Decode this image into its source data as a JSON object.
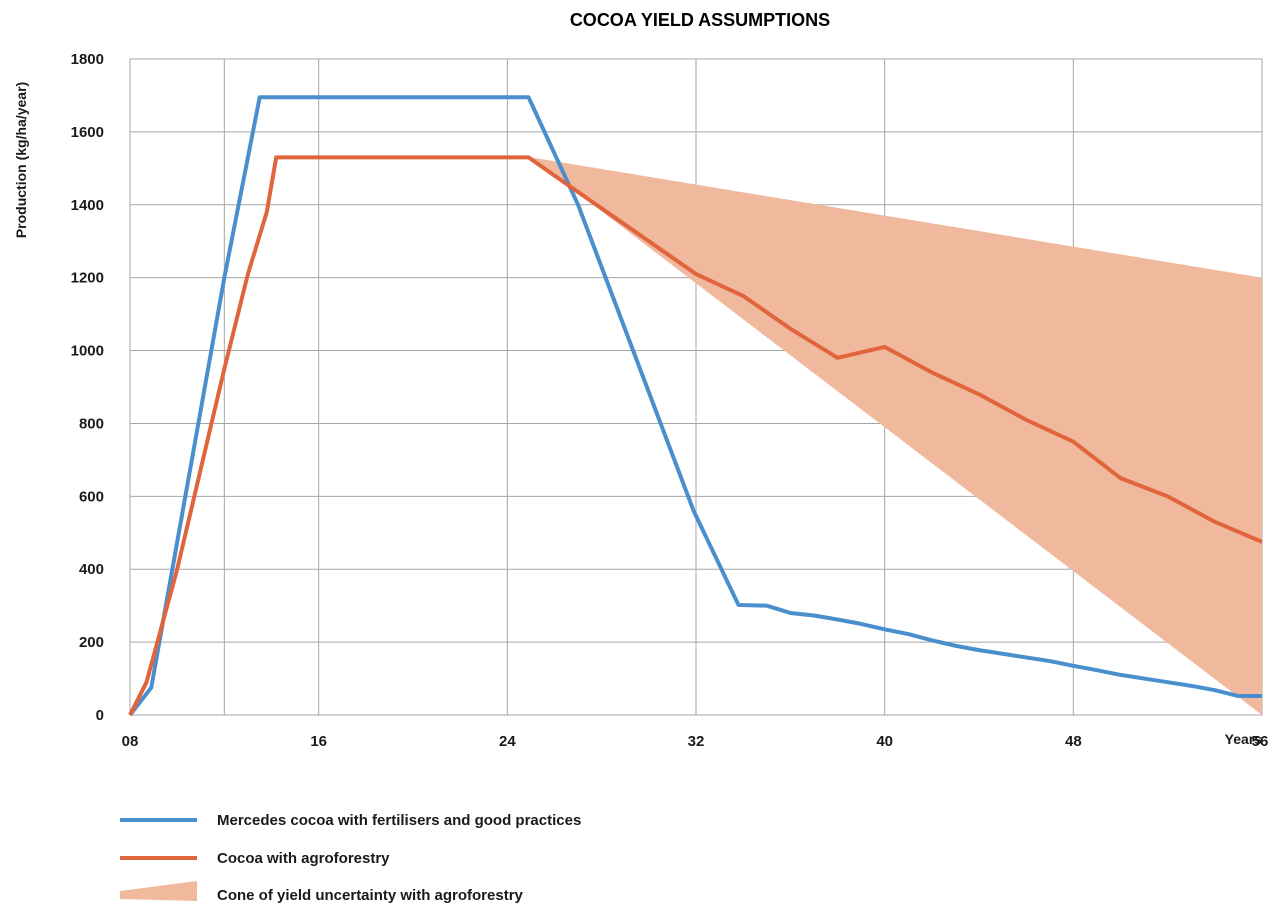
{
  "chart_data": {
    "type": "line",
    "title": "COCOA YIELD ASSUMPTIONS",
    "ylabel": "Production (kg/ha/year)",
    "xlabel": "Years",
    "xlim": [
      8,
      56
    ],
    "ylim": [
      0,
      1800
    ],
    "x_tick_labels": [
      "08",
      "",
      "16",
      "24",
      "32",
      "40",
      "48",
      "56"
    ],
    "x_tick_values": [
      8,
      12,
      16,
      24,
      32,
      40,
      48,
      56
    ],
    "y_ticks": [
      0,
      200,
      400,
      600,
      800,
      1000,
      1200,
      1400,
      1600,
      1800
    ],
    "grid": true,
    "legend_position": "bottom",
    "series": [
      {
        "name": "Mercedes cocoa with fertilisers and good practices",
        "color": "#4a8fcd",
        "points": [
          [
            8,
            0
          ],
          [
            8.9,
            75
          ],
          [
            12,
            1200
          ],
          [
            13.5,
            1695
          ],
          [
            24.9,
            1695
          ],
          [
            27,
            1400
          ],
          [
            31.9,
            560
          ],
          [
            33.8,
            302
          ],
          [
            35,
            300
          ],
          [
            36,
            280
          ],
          [
            37,
            273
          ],
          [
            38,
            262
          ],
          [
            39,
            250
          ],
          [
            40,
            235
          ],
          [
            41,
            222
          ],
          [
            42,
            205
          ],
          [
            43,
            190
          ],
          [
            44,
            178
          ],
          [
            45,
            168
          ],
          [
            46,
            158
          ],
          [
            47,
            148
          ],
          [
            48,
            135
          ],
          [
            49,
            123
          ],
          [
            50,
            110
          ],
          [
            51,
            100
          ],
          [
            52,
            90
          ],
          [
            53,
            80
          ],
          [
            54,
            68
          ],
          [
            55,
            52
          ],
          [
            56,
            52
          ]
        ]
      },
      {
        "name": "Cocoa with agroforestry",
        "color": "#e0653c",
        "points": [
          [
            8,
            0
          ],
          [
            8.7,
            90
          ],
          [
            10,
            400
          ],
          [
            12,
            950
          ],
          [
            13,
            1210
          ],
          [
            13.8,
            1380
          ],
          [
            14.2,
            1530
          ],
          [
            24.9,
            1530
          ],
          [
            26,
            1480
          ],
          [
            28,
            1390
          ],
          [
            30,
            1300
          ],
          [
            32,
            1210
          ],
          [
            34,
            1150
          ],
          [
            36,
            1060
          ],
          [
            38,
            980
          ],
          [
            40,
            1010
          ],
          [
            42,
            940
          ],
          [
            44,
            880
          ],
          [
            46,
            810
          ],
          [
            48,
            750
          ],
          [
            50,
            650
          ],
          [
            52,
            600
          ],
          [
            54,
            530
          ],
          [
            56,
            475
          ]
        ]
      }
    ],
    "band": {
      "name": "Cone of yield uncertainty with agroforestry",
      "color": "#f0b99d",
      "x": [
        25,
        56
      ],
      "upper": [
        1530,
        1200
      ],
      "lower": [
        1530,
        0
      ]
    }
  }
}
